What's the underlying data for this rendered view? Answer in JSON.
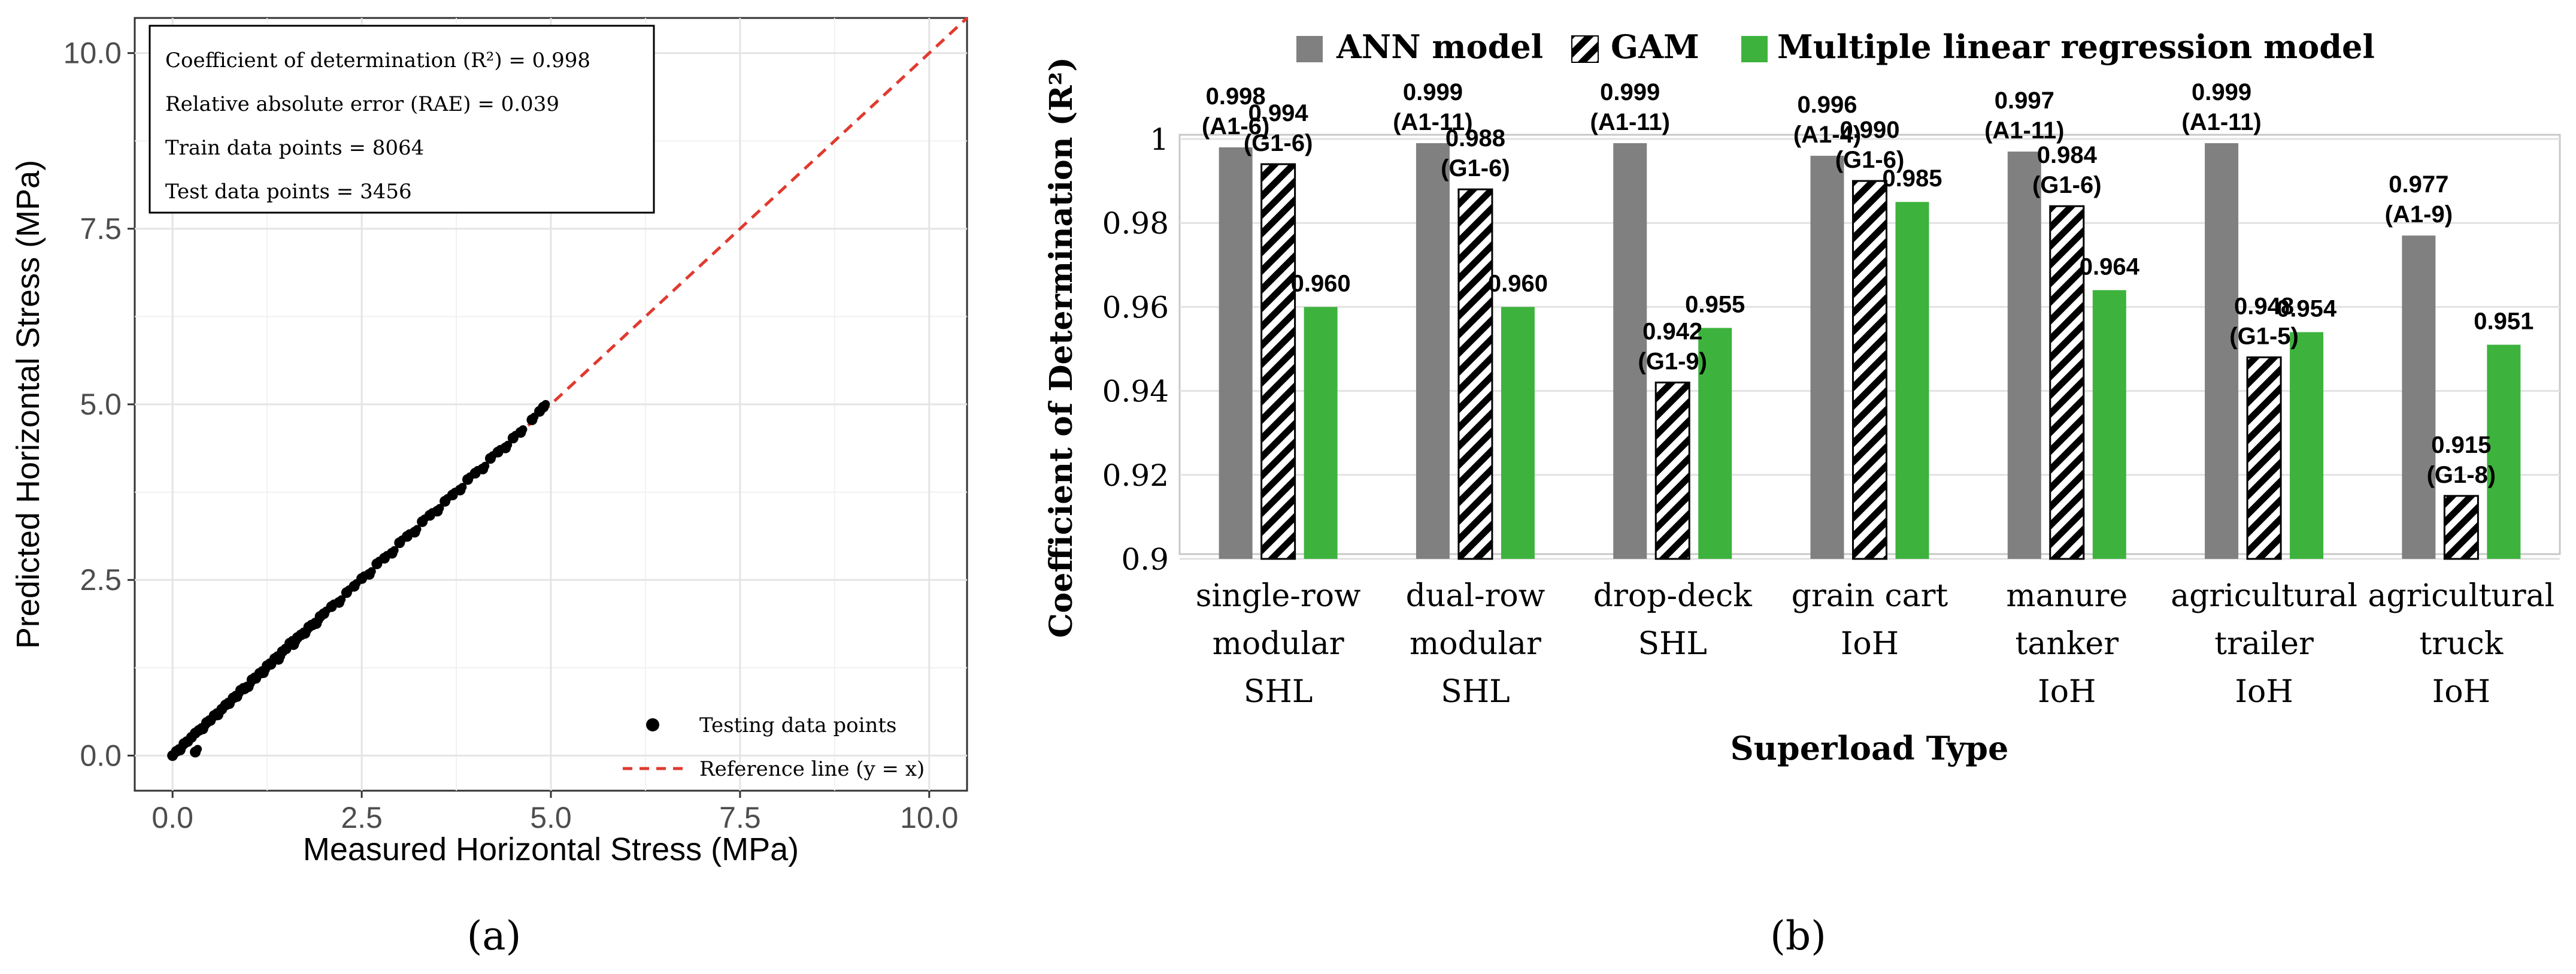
{
  "chart_data": [
    {
      "type": "scatter",
      "panel_label": "(a)",
      "xlabel": "Measured Horizontal Stress (MPa)",
      "ylabel": "Predicted Horizontal Stress (MPa)",
      "xlim": [
        -0.5,
        10.5
      ],
      "ylim": [
        -0.5,
        10.5
      ],
      "x_ticks": [
        "0.0",
        "2.5",
        "5.0",
        "7.5",
        "10.0"
      ],
      "y_ticks": [
        "0.0",
        "2.5",
        "5.0",
        "7.5",
        "10.0"
      ],
      "grid": true,
      "stats_box": [
        "Coefficient of determination (R²) = 0.998",
        "Relative absolute error (RAE) = 0.039",
        "Train data points = 8064",
        "Test data points = 3456"
      ],
      "legend": [
        {
          "label": "Testing data points",
          "kind": "point",
          "color": "#000000"
        },
        {
          "label": "Reference line (y = x)",
          "kind": "dashed-line",
          "color": "#e03a2f"
        }
      ],
      "legend_position": "bottom-right",
      "reference_line": {
        "from": [
          0,
          0
        ],
        "to": [
          10.5,
          10.5
        ],
        "color": "#e03a2f"
      },
      "series": [
        {
          "name": "Testing data points",
          "points": [
            [
              0.0,
              0.0
            ],
            [
              0.05,
              0.06
            ],
            [
              0.1,
              0.08
            ],
            [
              0.15,
              0.17
            ],
            [
              0.2,
              0.2
            ],
            [
              0.25,
              0.26
            ],
            [
              0.3,
              0.05
            ],
            [
              0.3,
              0.32
            ],
            [
              0.35,
              0.36
            ],
            [
              0.4,
              0.38
            ],
            [
              0.45,
              0.47
            ],
            [
              0.5,
              0.5
            ],
            [
              0.55,
              0.57
            ],
            [
              0.6,
              0.58
            ],
            [
              0.65,
              0.66
            ],
            [
              0.7,
              0.72
            ],
            [
              0.75,
              0.74
            ],
            [
              0.8,
              0.82
            ],
            [
              0.85,
              0.84
            ],
            [
              0.9,
              0.93
            ],
            [
              0.95,
              0.95
            ],
            [
              1.0,
              0.98
            ],
            [
              1.05,
              1.08
            ],
            [
              1.1,
              1.1
            ],
            [
              1.15,
              1.17
            ],
            [
              1.2,
              1.18
            ],
            [
              1.25,
              1.28
            ],
            [
              1.3,
              1.3
            ],
            [
              1.35,
              1.38
            ],
            [
              1.4,
              1.37
            ],
            [
              1.45,
              1.48
            ],
            [
              1.5,
              1.52
            ],
            [
              1.55,
              1.6
            ],
            [
              1.6,
              1.58
            ],
            [
              1.65,
              1.68
            ],
            [
              1.7,
              1.72
            ],
            [
              1.75,
              1.74
            ],
            [
              1.8,
              1.83
            ],
            [
              1.85,
              1.86
            ],
            [
              1.9,
              1.88
            ],
            [
              1.95,
              1.98
            ],
            [
              2.0,
              2.02
            ],
            [
              2.1,
              2.12
            ],
            [
              2.2,
              2.18
            ],
            [
              2.3,
              2.32
            ],
            [
              2.4,
              2.41
            ],
            [
              2.5,
              2.52
            ],
            [
              2.6,
              2.58
            ],
            [
              2.7,
              2.73
            ],
            [
              2.8,
              2.81
            ],
            [
              2.9,
              2.88
            ],
            [
              3.0,
              3.03
            ],
            [
              3.1,
              3.12
            ],
            [
              3.2,
              3.18
            ],
            [
              3.3,
              3.33
            ],
            [
              3.4,
              3.42
            ],
            [
              3.5,
              3.48
            ],
            [
              3.6,
              3.62
            ],
            [
              3.7,
              3.71
            ],
            [
              3.8,
              3.78
            ],
            [
              3.9,
              3.93
            ],
            [
              4.0,
              4.02
            ],
            [
              4.1,
              4.08
            ],
            [
              4.2,
              4.23
            ],
            [
              4.3,
              4.32
            ],
            [
              4.4,
              4.38
            ],
            [
              4.5,
              4.52
            ],
            [
              4.6,
              4.6
            ],
            [
              4.75,
              4.78
            ],
            [
              4.85,
              4.9
            ],
            [
              4.9,
              4.96
            ]
          ]
        }
      ]
    },
    {
      "type": "bar",
      "panel_label": "(b)",
      "xlabel": "Superload Type",
      "ylabel": "Coefficient of Determination (R²)",
      "ylim": [
        0.9,
        1.0
      ],
      "y_ticks": [
        "0.9",
        "0.92",
        "0.94",
        "0.96",
        "0.98",
        "1"
      ],
      "grid": true,
      "legend_position": "top",
      "categories": [
        [
          "single-row",
          "modular",
          "SHL"
        ],
        [
          "dual-row",
          "modular",
          "SHL"
        ],
        [
          "drop-deck",
          "SHL"
        ],
        [
          "grain cart",
          "IoH"
        ],
        [
          "manure",
          "tanker",
          "IoH"
        ],
        [
          "agricultural",
          "trailer",
          "IoH"
        ],
        [
          "agricultural",
          "truck",
          "IoH"
        ]
      ],
      "series": [
        {
          "name": "ANN model",
          "color": "#808080",
          "pattern": "solid",
          "values": [
            0.998,
            0.999,
            0.999,
            0.996,
            0.997,
            0.999,
            0.977
          ],
          "labels": [
            "0.998",
            "0.999",
            "0.999",
            "0.996",
            "0.997",
            "0.999",
            "0.977"
          ],
          "sublabels": [
            "(A1-6)",
            "(A1-11)",
            "(A1-11)",
            "(A1-4)",
            "(A1-11)",
            "(A1-11)",
            "(A1-9)"
          ]
        },
        {
          "name": "GAM",
          "color": "#000000",
          "pattern": "hatched",
          "values": [
            0.994,
            0.988,
            0.942,
            0.99,
            0.984,
            0.948,
            0.915
          ],
          "labels": [
            "0.994",
            "0.988",
            "0.942",
            "0.990",
            "0.984",
            "0.948",
            "0.915"
          ],
          "sublabels": [
            "(G1-6)",
            "(G1-6)",
            "(G1-9)",
            "(G1-6)",
            "(G1-6)",
            "(G1-5)",
            "(G1-8)"
          ]
        },
        {
          "name": "Multiple linear regression model",
          "color": "#3db33d",
          "pattern": "solid",
          "values": [
            0.96,
            0.96,
            0.955,
            0.985,
            0.964,
            0.954,
            0.951
          ],
          "labels": [
            "0.960",
            "0.960",
            "0.955",
            "0.985",
            "0.964",
            "0.954",
            "0.951"
          ]
        }
      ]
    }
  ]
}
